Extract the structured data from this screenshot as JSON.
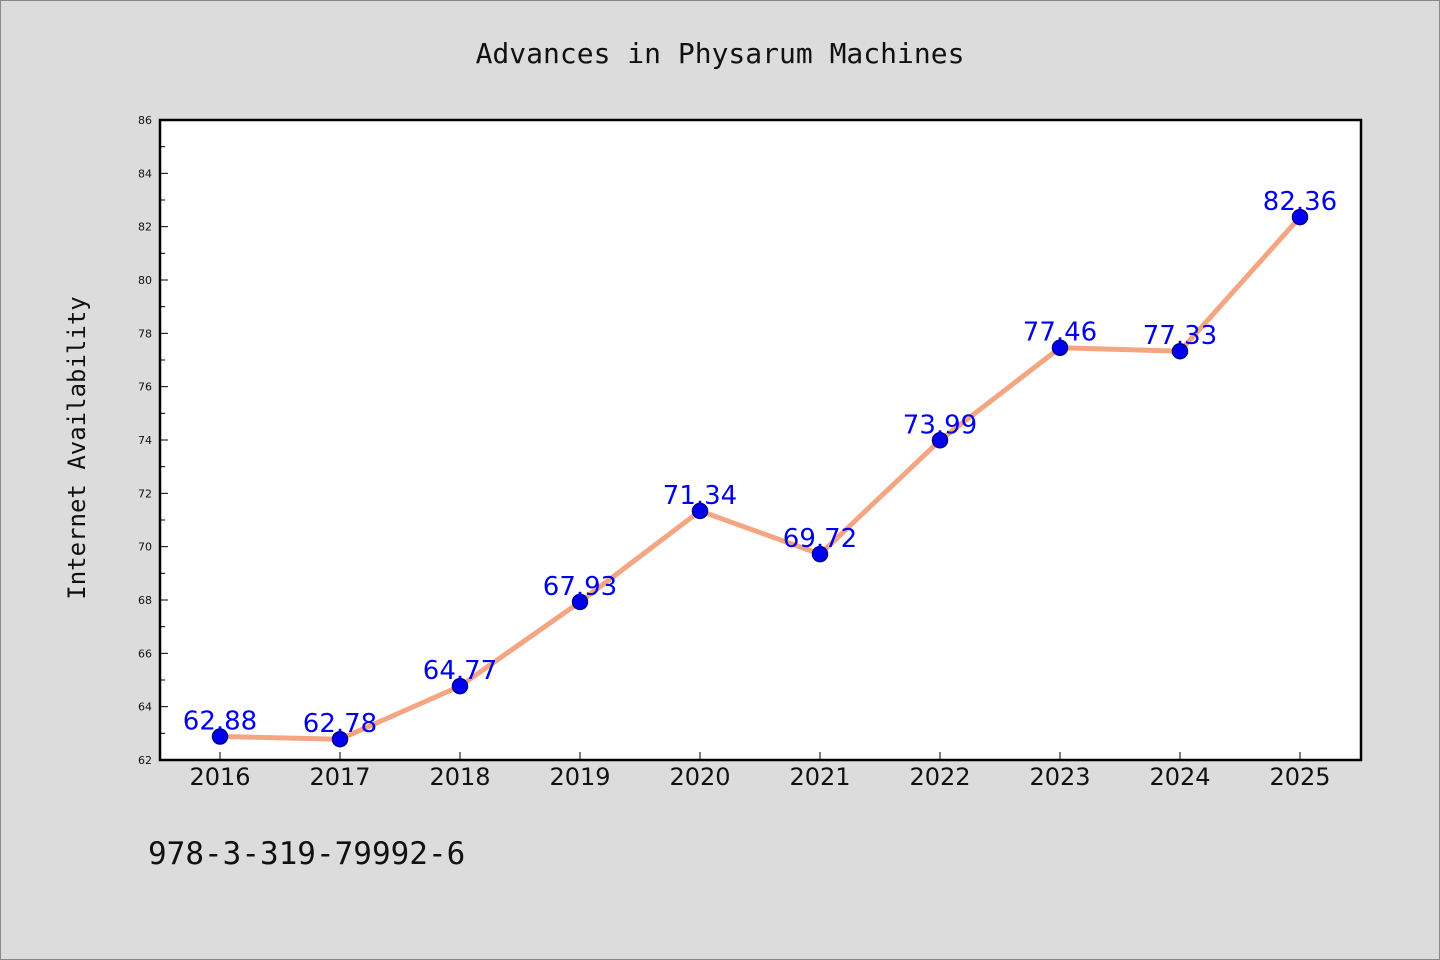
{
  "chart_data": {
    "type": "line",
    "title": "Advances in Physarum Machines",
    "xlabel": "",
    "ylabel": "Internet Availability",
    "categories": [
      "2016",
      "2017",
      "2018",
      "2019",
      "2020",
      "2021",
      "2022",
      "2023",
      "2024",
      "2025"
    ],
    "series": [
      {
        "values": [
          62.88,
          62.78,
          64.77,
          67.93,
          71.34,
          69.72,
          73.99,
          77.46,
          77.33,
          82.36
        ],
        "labels": [
          "62.88",
          "62.78",
          "64.77",
          "67.93",
          "71.34",
          "69.72",
          "73.99",
          "77.46",
          "77.33",
          "82.36"
        ]
      }
    ],
    "ylim": [
      62,
      86
    ],
    "yticks": [
      "62",
      "64",
      "66",
      "68",
      "70",
      "72",
      "74",
      "76",
      "78",
      "80",
      "82",
      "84",
      "86"
    ],
    "grid": false,
    "legend": "none",
    "colors": {
      "line": "#f4a582",
      "marker": "#0000ee",
      "label": "#0000ee",
      "plot_background": "#ffffff",
      "figure_background": "#dcdcdc"
    }
  },
  "footnote": "978-3-319-79992-6"
}
